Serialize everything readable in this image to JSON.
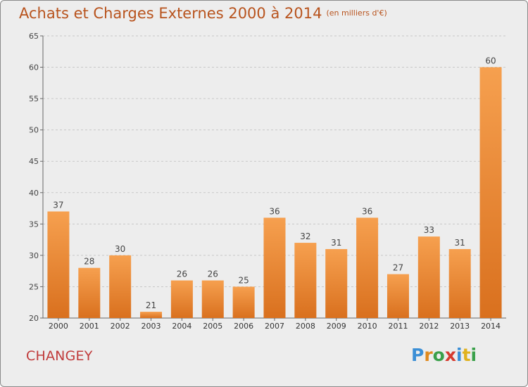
{
  "header": {
    "title": "Achats et Charges Externes 2000 à 2014",
    "subtitle": "(en milliers d'€)"
  },
  "footer": {
    "commune": "CHANGEY",
    "logo": "Proxiti",
    "logo_letters": [
      {
        "ch": "P",
        "color": "#3b8fd6"
      },
      {
        "ch": "r",
        "color": "#e08a1e"
      },
      {
        "ch": "o",
        "color": "#3aa04a"
      },
      {
        "ch": "x",
        "color": "#d63b2f"
      },
      {
        "ch": "i",
        "color": "#3b8fd6"
      },
      {
        "ch": "t",
        "color": "#e0b21e"
      },
      {
        "ch": "i",
        "color": "#3aa04a"
      }
    ]
  },
  "colors": {
    "bar_light": "#f6a04f",
    "bar_dark": "#d9701e",
    "axis": "#666666",
    "grid": "#c8c8c8"
  },
  "chart_data": {
    "type": "bar",
    "categories": [
      "2000",
      "2001",
      "2002",
      "2003",
      "2004",
      "2005",
      "2006",
      "2007",
      "2008",
      "2009",
      "2010",
      "2011",
      "2012",
      "2013",
      "2014"
    ],
    "values": [
      37,
      28,
      30,
      21,
      26,
      26,
      25,
      36,
      32,
      31,
      36,
      27,
      33,
      31,
      60
    ],
    "ylim": [
      20,
      65
    ],
    "yticks": [
      20,
      25,
      30,
      35,
      40,
      45,
      50,
      55,
      60,
      65
    ],
    "grid": "horizontal dashed",
    "legend": "none"
  }
}
